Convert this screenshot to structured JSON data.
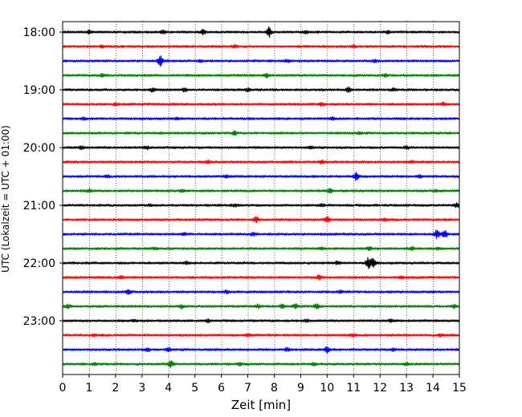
{
  "chart_data": {
    "type": "line",
    "title": "",
    "xlabel": "Zeit  [min]",
    "ylabel": "UTC (Lokalzeit = UTC + 01:00)",
    "xlim": [
      0,
      15
    ],
    "x_ticks": [
      0,
      1,
      2,
      3,
      4,
      5,
      6,
      7,
      8,
      9,
      10,
      11,
      12,
      13,
      14,
      15
    ],
    "x_tick_labels": [
      "0",
      "1",
      "2",
      "3",
      "4",
      "5",
      "6",
      "7",
      "8",
      "9",
      "10",
      "11",
      "12",
      "13",
      "14",
      "15"
    ],
    "x_grid": "dotted vertical lines at each minute",
    "y_tick_labels": [
      "18:00",
      "19:00",
      "20:00",
      "21:00",
      "22:00",
      "23:00"
    ],
    "trace_count": 24,
    "trace_interval_minutes": 15,
    "first_trace_time": "18:00",
    "colors": [
      "#000000",
      "#ff0000",
      "#0000ff",
      "#008000"
    ],
    "color_cycle": [
      "black",
      "red",
      "blue",
      "green"
    ],
    "series": [
      {
        "start": "18:00",
        "color": "#000000",
        "events": [
          {
            "x": 1.0,
            "a": 1.6
          },
          {
            "x": 3.8,
            "a": 1.8
          },
          {
            "x": 5.3,
            "a": 2.5
          },
          {
            "x": 7.8,
            "a": 6.0
          },
          {
            "x": 9.2,
            "a": 1.5
          },
          {
            "x": 12.3,
            "a": 1.5
          }
        ]
      },
      {
        "start": "18:15",
        "color": "#ff0000",
        "events": [
          {
            "x": 1.5,
            "a": 1.3
          },
          {
            "x": 6.5,
            "a": 1.4
          },
          {
            "x": 11.0,
            "a": 1.3
          }
        ]
      },
      {
        "start": "18:30",
        "color": "#0000ff",
        "events": [
          {
            "x": 3.7,
            "a": 6.0
          },
          {
            "x": 5.2,
            "a": 1.4
          },
          {
            "x": 8.5,
            "a": 1.4
          },
          {
            "x": 11.8,
            "a": 1.4
          }
        ]
      },
      {
        "start": "18:45",
        "color": "#008000",
        "events": [
          {
            "x": 1.5,
            "a": 1.4
          },
          {
            "x": 7.7,
            "a": 2.5
          },
          {
            "x": 12.2,
            "a": 1.4
          }
        ]
      },
      {
        "start": "19:00",
        "color": "#000000",
        "events": [
          {
            "x": 3.4,
            "a": 2.2
          },
          {
            "x": 4.6,
            "a": 1.8
          },
          {
            "x": 7.0,
            "a": 1.4
          },
          {
            "x": 10.8,
            "a": 2.5
          },
          {
            "x": 12.5,
            "a": 1.4
          }
        ]
      },
      {
        "start": "19:15",
        "color": "#ff0000",
        "events": [
          {
            "x": 2.0,
            "a": 1.3
          },
          {
            "x": 9.8,
            "a": 1.5
          },
          {
            "x": 14.4,
            "a": 1.6
          }
        ]
      },
      {
        "start": "19:30",
        "color": "#0000ff",
        "events": [
          {
            "x": 0.8,
            "a": 1.3
          },
          {
            "x": 4.3,
            "a": 1.3
          },
          {
            "x": 10.2,
            "a": 1.3
          }
        ]
      },
      {
        "start": "19:45",
        "color": "#008000",
        "events": [
          {
            "x": 6.5,
            "a": 2.5
          },
          {
            "x": 11.2,
            "a": 1.3
          }
        ]
      },
      {
        "start": "20:00",
        "color": "#000000",
        "events": [
          {
            "x": 0.7,
            "a": 2.0
          },
          {
            "x": 3.2,
            "a": 1.4
          },
          {
            "x": 9.4,
            "a": 1.5
          },
          {
            "x": 13.0,
            "a": 1.4
          }
        ]
      },
      {
        "start": "20:15",
        "color": "#ff0000",
        "events": [
          {
            "x": 5.5,
            "a": 1.4
          },
          {
            "x": 9.8,
            "a": 1.5
          },
          {
            "x": 13.2,
            "a": 1.3
          }
        ]
      },
      {
        "start": "20:30",
        "color": "#0000ff",
        "events": [
          {
            "x": 1.7,
            "a": 1.3
          },
          {
            "x": 6.2,
            "a": 1.4
          },
          {
            "x": 11.1,
            "a": 4.5
          },
          {
            "x": 13.5,
            "a": 1.4
          }
        ]
      },
      {
        "start": "20:45",
        "color": "#008000",
        "events": [
          {
            "x": 1.0,
            "a": 1.4
          },
          {
            "x": 4.5,
            "a": 1.4
          },
          {
            "x": 10.1,
            "a": 2.5
          },
          {
            "x": 14.1,
            "a": 1.5
          }
        ]
      },
      {
        "start": "21:00",
        "color": "#000000",
        "events": [
          {
            "x": 3.3,
            "a": 1.4
          },
          {
            "x": 6.5,
            "a": 1.5
          },
          {
            "x": 9.8,
            "a": 1.4
          },
          {
            "x": 14.9,
            "a": 2.0
          }
        ]
      },
      {
        "start": "21:15",
        "color": "#ff0000",
        "events": [
          {
            "x": 7.3,
            "a": 3.5
          },
          {
            "x": 10.0,
            "a": 3.0
          },
          {
            "x": 12.2,
            "a": 1.3
          }
        ]
      },
      {
        "start": "21:30",
        "color": "#0000ff",
        "events": [
          {
            "x": 4.6,
            "a": 1.5
          },
          {
            "x": 7.2,
            "a": 1.4
          },
          {
            "x": 14.15,
            "a": 5.0
          },
          {
            "x": 14.45,
            "a": 5.0
          }
        ]
      },
      {
        "start": "21:45",
        "color": "#008000",
        "events": [
          {
            "x": 3.5,
            "a": 1.4
          },
          {
            "x": 9.8,
            "a": 1.6
          },
          {
            "x": 11.6,
            "a": 2.0
          },
          {
            "x": 13.2,
            "a": 1.8
          },
          {
            "x": 14.2,
            "a": 1.6
          }
        ]
      },
      {
        "start": "22:00",
        "color": "#000000",
        "events": [
          {
            "x": 4.7,
            "a": 1.4
          },
          {
            "x": 10.4,
            "a": 1.6
          },
          {
            "x": 11.55,
            "a": 6.0
          },
          {
            "x": 11.75,
            "a": 5.5
          }
        ]
      },
      {
        "start": "22:15",
        "color": "#ff0000",
        "events": [
          {
            "x": 2.2,
            "a": 1.3
          },
          {
            "x": 9.7,
            "a": 2.5
          },
          {
            "x": 12.8,
            "a": 1.3
          }
        ]
      },
      {
        "start": "22:30",
        "color": "#0000ff",
        "events": [
          {
            "x": 2.5,
            "a": 2.2
          },
          {
            "x": 6.2,
            "a": 1.4
          },
          {
            "x": 10.5,
            "a": 1.4
          }
        ]
      },
      {
        "start": "22:45",
        "color": "#008000",
        "events": [
          {
            "x": 0.2,
            "a": 2.2
          },
          {
            "x": 4.5,
            "a": 2.0
          },
          {
            "x": 7.4,
            "a": 2.2
          },
          {
            "x": 8.3,
            "a": 2.0
          },
          {
            "x": 8.8,
            "a": 2.5
          },
          {
            "x": 9.6,
            "a": 2.8
          },
          {
            "x": 14.8,
            "a": 2.0
          }
        ]
      },
      {
        "start": "23:00",
        "color": "#000000",
        "events": [
          {
            "x": 2.7,
            "a": 1.4
          },
          {
            "x": 5.5,
            "a": 1.4
          },
          {
            "x": 9.2,
            "a": 1.5
          },
          {
            "x": 12.4,
            "a": 1.4
          }
        ]
      },
      {
        "start": "23:15",
        "color": "#ff0000",
        "events": [
          {
            "x": 1.2,
            "a": 1.3
          },
          {
            "x": 7.0,
            "a": 1.5
          },
          {
            "x": 11.0,
            "a": 1.4
          },
          {
            "x": 14.3,
            "a": 1.3
          }
        ]
      },
      {
        "start": "23:30",
        "color": "#0000ff",
        "events": [
          {
            "x": 3.2,
            "a": 1.6
          },
          {
            "x": 4.0,
            "a": 1.8
          },
          {
            "x": 8.5,
            "a": 2.0
          },
          {
            "x": 10.0,
            "a": 3.0
          },
          {
            "x": 12.5,
            "a": 1.4
          }
        ]
      },
      {
        "start": "23:45",
        "color": "#008000",
        "events": [
          {
            "x": 1.2,
            "a": 1.5
          },
          {
            "x": 4.1,
            "a": 3.5
          },
          {
            "x": 6.7,
            "a": 1.6
          },
          {
            "x": 9.5,
            "a": 1.6
          },
          {
            "x": 13.0,
            "a": 1.5
          }
        ]
      }
    ]
  }
}
